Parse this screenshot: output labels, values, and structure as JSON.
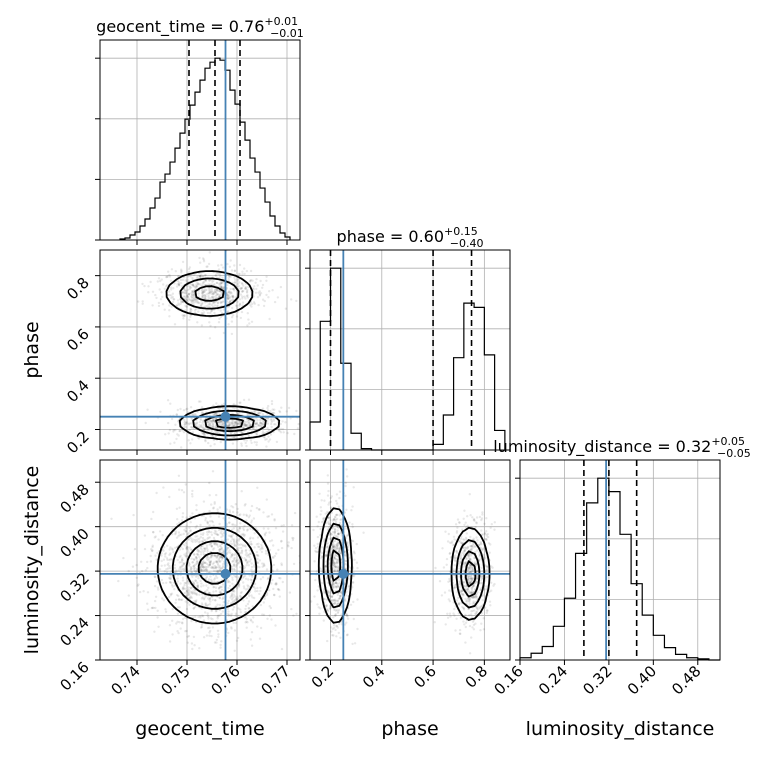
{
  "chart_data": {
    "type": "corner",
    "parameters": [
      "geocent_time",
      "phase",
      "luminosity_distance"
    ],
    "truth_color": "#4682b4",
    "truths": {
      "geocent_time": 0.7577,
      "phase": 0.25,
      "luminosity_distance": 0.315
    },
    "ranges": {
      "geocent_time": [
        0.7326,
        0.7726
      ],
      "phase": [
        0.12,
        0.9
      ],
      "luminosity_distance": [
        0.16,
        0.52
      ]
    },
    "ticks": {
      "geocent_time": [
        "0.74",
        "0.75",
        "0.76",
        "0.77"
      ],
      "phase": [
        "0.2",
        "0.4",
        "0.6",
        "0.8"
      ],
      "luminosity_distance": [
        "0.16",
        "0.24",
        "0.32",
        "0.40",
        "0.48"
      ]
    },
    "axis_labels": {
      "geocent_time": "geocent_time",
      "phase": "phase",
      "luminosity_distance": "luminosity_distance"
    },
    "titles": [
      {
        "parameter": "geocent_time",
        "main": "geocent_time = 0.76",
        "plus": "+0.01",
        "minus": "−0.01"
      },
      {
        "parameter": "phase",
        "main": "phase = 0.60",
        "plus": "+0.15",
        "minus": "−0.40"
      },
      {
        "parameter": "luminosity_distance",
        "main": "luminosity_distance = 0.32",
        "plus": "+0.05",
        "minus": "−0.05"
      }
    ],
    "quantiles": {
      "geocent_time": [
        0.7504,
        0.7556,
        0.7606
      ],
      "phase": [
        0.2,
        0.6,
        0.75
      ],
      "luminosity_distance": [
        0.275,
        0.32,
        0.37
      ]
    },
    "histograms": {
      "geocent_time": {
        "edges": [
          0.7366,
          0.7376,
          0.7386,
          0.7396,
          0.7406,
          0.7416,
          0.7426,
          0.7436,
          0.7446,
          0.7456,
          0.7466,
          0.7476,
          0.7486,
          0.7496,
          0.7506,
          0.7516,
          0.7526,
          0.7536,
          0.7546,
          0.7556,
          0.7566,
          0.7576,
          0.7586,
          0.7596,
          0.7606,
          0.7616,
          0.7626,
          0.7636,
          0.7646,
          0.7656,
          0.7666,
          0.7676,
          0.7686,
          0.7696,
          0.7706
        ],
        "counts": [
          1,
          2,
          5,
          8,
          14,
          21,
          32,
          42,
          58,
          66,
          78,
          92,
          107,
          121,
          135,
          148,
          160,
          172,
          178,
          182,
          180,
          170,
          150,
          136,
          118,
          100,
          82,
          68,
          52,
          38,
          24,
          14,
          7,
          3
        ]
      },
      "phase": {
        "edges": [
          0.12,
          0.16,
          0.2,
          0.24,
          0.28,
          0.32,
          0.36,
          0.4,
          0.44,
          0.48,
          0.52,
          0.56,
          0.6,
          0.64,
          0.68,
          0.72,
          0.76,
          0.8,
          0.84,
          0.88
        ],
        "counts": [
          20,
          92,
          130,
          62,
          12,
          1,
          0,
          0,
          0,
          0,
          0,
          0,
          4,
          25,
          66,
          105,
          102,
          68,
          14
        ]
      },
      "luminosity_distance": {
        "edges": [
          0.16,
          0.18,
          0.2,
          0.22,
          0.24,
          0.26,
          0.28,
          0.3,
          0.32,
          0.34,
          0.36,
          0.38,
          0.4,
          0.42,
          0.44,
          0.46,
          0.48,
          0.5,
          0.52
        ],
        "counts": [
          2,
          6,
          12,
          30,
          55,
          95,
          140,
          162,
          150,
          112,
          68,
          40,
          22,
          11,
          5,
          2,
          1,
          0
        ]
      }
    },
    "posterior_modes_2d": {
      "geocent_time_vs_phase": [
        {
          "center": [
            0.7545,
            0.73
          ],
          "sigma": [
            0.0045,
            0.045
          ],
          "weight": 0.5
        },
        {
          "center": [
            0.7585,
            0.225
          ],
          "sigma": [
            0.0048,
            0.03
          ],
          "weight": 0.5
        }
      ],
      "geocent_time_vs_luminosity_distance": [
        {
          "center": [
            0.7555,
            0.325
          ],
          "sigma": [
            0.0055,
            0.048
          ],
          "weight": 1.0
        }
      ],
      "phase_vs_luminosity_distance": [
        {
          "center": [
            0.22,
            0.33
          ],
          "sigma": [
            0.03,
            0.05
          ],
          "weight": 0.52
        },
        {
          "center": [
            0.745,
            0.315
          ],
          "sigma": [
            0.035,
            0.04
          ],
          "weight": 0.48
        }
      ]
    }
  }
}
